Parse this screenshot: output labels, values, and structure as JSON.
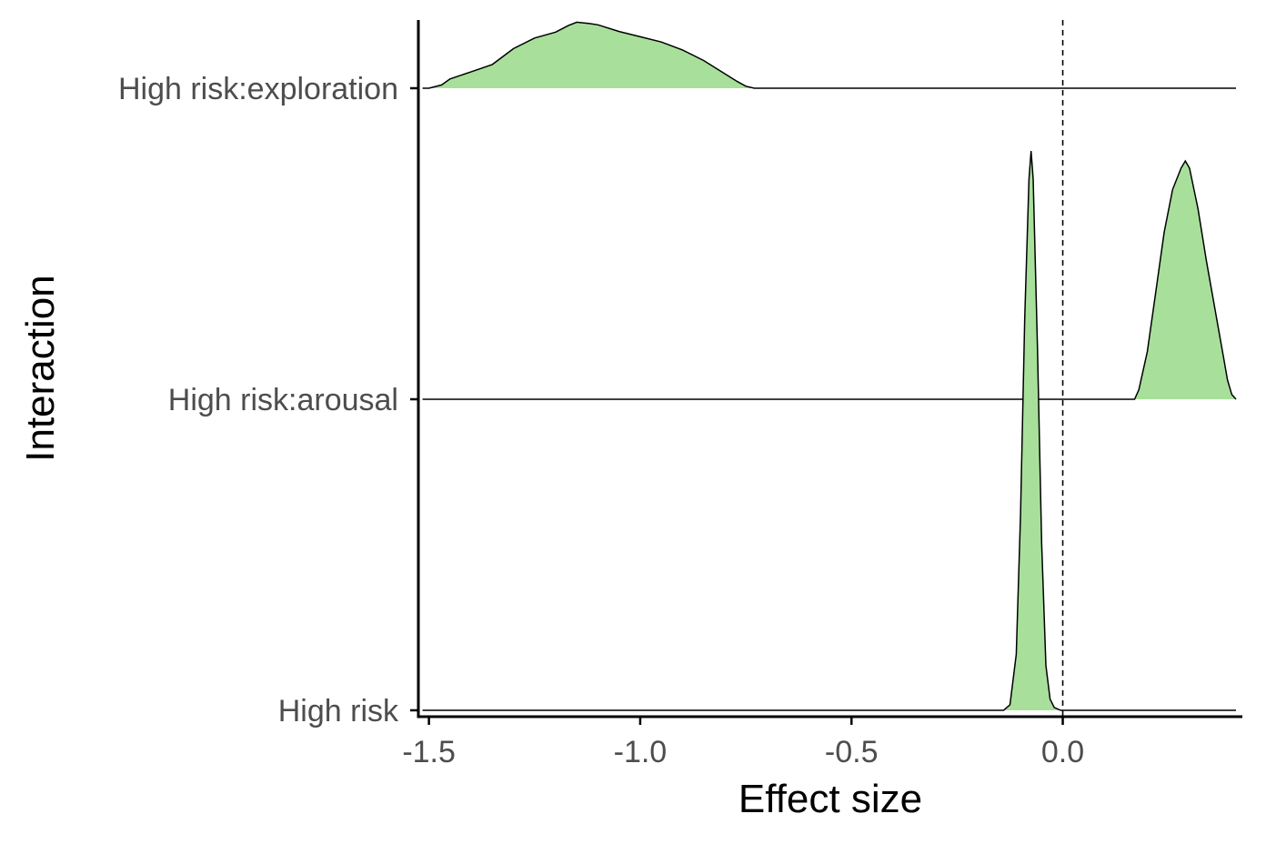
{
  "chart_data": {
    "type": "ridgeline",
    "title": "",
    "xlabel": "Effect size",
    "ylabel": "Interaction",
    "xlim": [
      -1.525,
      0.425
    ],
    "x_ticks": [
      "-1.5",
      "-1.0",
      "-0.5",
      "0.0"
    ],
    "x_tick_values": [
      -1.5,
      -1.0,
      -0.5,
      0.0
    ],
    "reference_line": {
      "x": 0.0,
      "style": "dashed"
    },
    "categories": [
      "High risk",
      "High risk:arousal",
      "High risk:exploration"
    ],
    "fill_color": "#a8e09b",
    "line_color": "#000000",
    "grid": false,
    "legend": "none",
    "series": [
      {
        "name": "High risk",
        "density_x": [
          -0.14,
          -0.125,
          -0.11,
          -0.1,
          -0.09,
          -0.08,
          -0.075,
          -0.07,
          -0.06,
          -0.05,
          -0.04,
          -0.03,
          -0.02,
          -0.005
        ],
        "density_y": [
          0.0,
          0.01,
          0.1,
          0.35,
          0.7,
          0.95,
          1.0,
          0.95,
          0.65,
          0.3,
          0.08,
          0.02,
          0.005,
          0.0
        ]
      },
      {
        "name": "High risk:arousal",
        "density_x": [
          0.17,
          0.18,
          0.2,
          0.22,
          0.24,
          0.26,
          0.28,
          0.29,
          0.3,
          0.32,
          0.34,
          0.36,
          0.38,
          0.39,
          0.4,
          0.41
        ],
        "density_y": [
          0.0,
          0.04,
          0.2,
          0.45,
          0.7,
          0.88,
          0.97,
          1.0,
          0.97,
          0.8,
          0.58,
          0.38,
          0.18,
          0.08,
          0.02,
          0.0
        ]
      },
      {
        "name": "High risk:exploration",
        "density_x": [
          -1.5,
          -1.47,
          -1.45,
          -1.4,
          -1.35,
          -1.3,
          -1.25,
          -1.2,
          -1.17,
          -1.15,
          -1.12,
          -1.1,
          -1.05,
          -1.0,
          -0.95,
          -0.9,
          -0.85,
          -0.8,
          -0.77,
          -0.75,
          -0.73
        ],
        "density_y": [
          0.0,
          0.05,
          0.14,
          0.25,
          0.36,
          0.6,
          0.76,
          0.85,
          0.95,
          1.0,
          0.98,
          0.96,
          0.86,
          0.78,
          0.7,
          0.58,
          0.42,
          0.22,
          0.1,
          0.03,
          0.0
        ]
      }
    ]
  }
}
